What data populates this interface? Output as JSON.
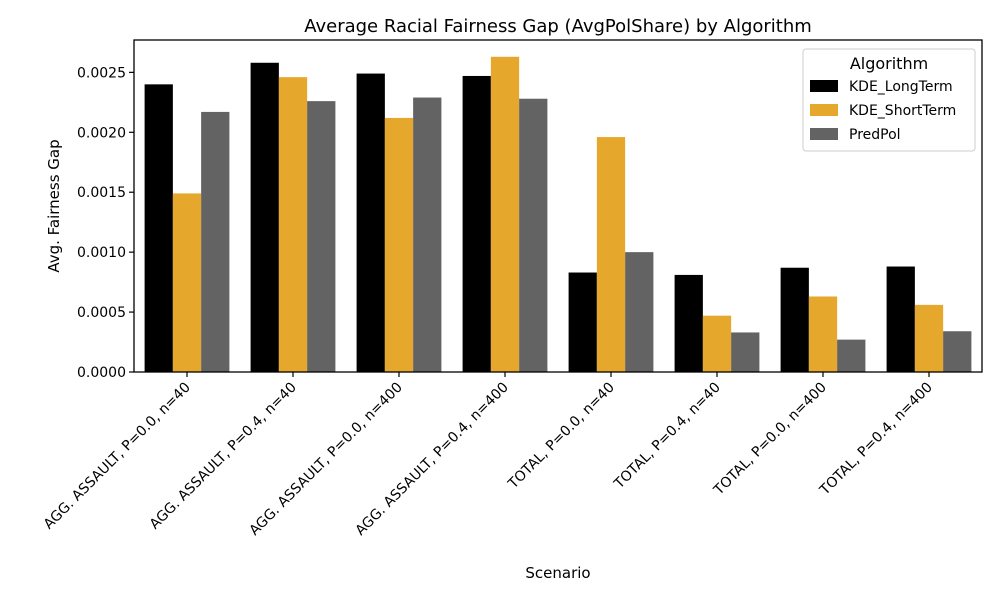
{
  "chart_data": {
    "type": "bar",
    "title": "Average Racial Fairness Gap (AvgPolShare) by Algorithm",
    "xlabel": "Scenario",
    "ylabel": "Avg. Fairness Gap",
    "ylim": [
      0,
      0.00277
    ],
    "yticks": [
      0.0,
      0.0005,
      0.001,
      0.0015,
      0.002,
      0.0025
    ],
    "ytick_labels": [
      "0.0000",
      "0.0005",
      "0.0010",
      "0.0015",
      "0.0020",
      "0.0025"
    ],
    "grid": false,
    "legend": {
      "title": "Algorithm",
      "placement": "top-right"
    },
    "categories": [
      "AGG. ASSAULT, P=0.0, n=40",
      "AGG. ASSAULT, P=0.4, n=40",
      "AGG. ASSAULT, P=0.0, n=400",
      "AGG. ASSAULT, P=0.4, n=400",
      "TOTAL, P=0.0, n=40",
      "TOTAL, P=0.4, n=40",
      "TOTAL, P=0.0, n=400",
      "TOTAL, P=0.4, n=400"
    ],
    "series": [
      {
        "name": "KDE_LongTerm",
        "color": "#000000",
        "values": [
          0.0024,
          0.00258,
          0.00249,
          0.00247,
          0.00083,
          0.00081,
          0.00087,
          0.00088
        ]
      },
      {
        "name": "KDE_ShortTerm",
        "color": "#e6a82c",
        "values": [
          0.00149,
          0.00246,
          0.00212,
          0.00263,
          0.00196,
          0.00047,
          0.00063,
          0.00056
        ]
      },
      {
        "name": "PredPol",
        "color": "#636363",
        "values": [
          0.00217,
          0.00226,
          0.00229,
          0.00228,
          0.001,
          0.00033,
          0.00027,
          0.00034
        ]
      }
    ]
  }
}
